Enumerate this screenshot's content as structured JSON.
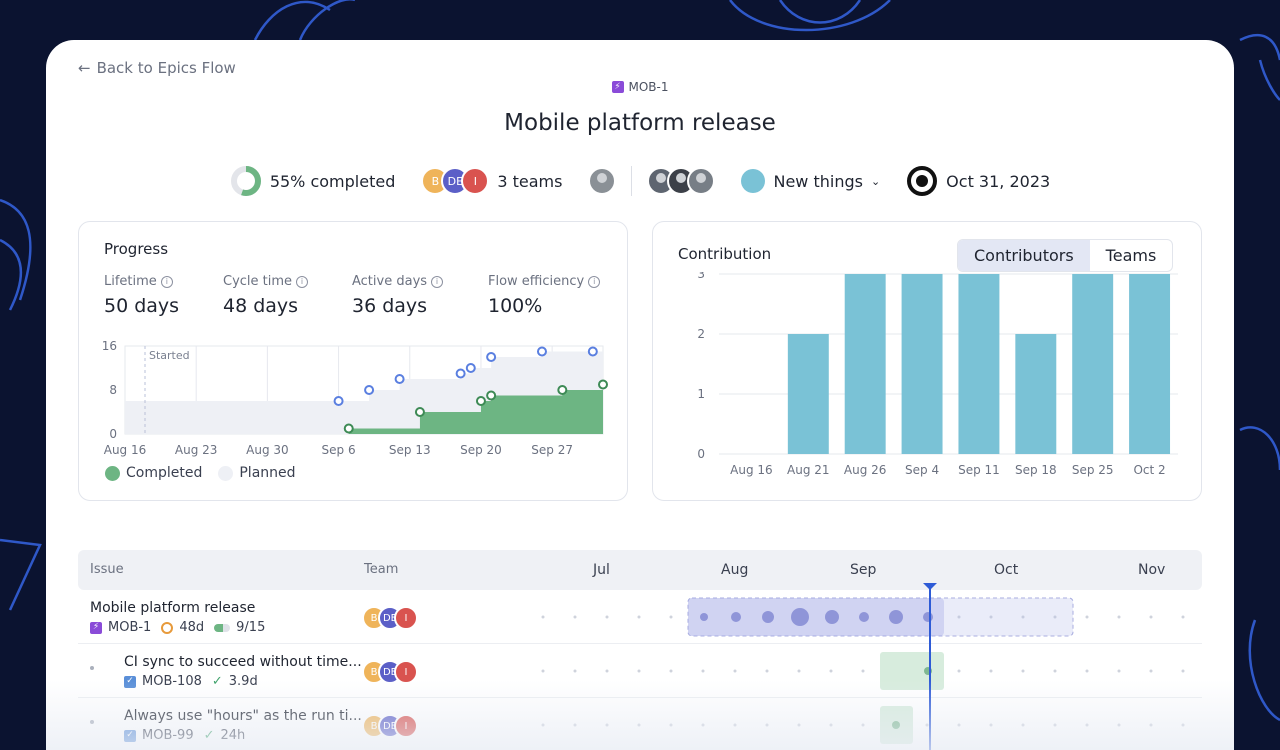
{
  "nav": {
    "back_label": "Back to Epics Flow"
  },
  "epic": {
    "key": "MOB-1",
    "title": "Mobile platform release"
  },
  "summary": {
    "completed_label": "55% completed",
    "completed_fraction": 0.55,
    "teams_label": "3 teams",
    "team_initials": [
      "B",
      "DE",
      "I"
    ],
    "tag_label": "New things",
    "due_date": "Oct 31, 2023"
  },
  "progress": {
    "title": "Progress",
    "metrics": [
      {
        "label": "Lifetime",
        "value": "50 days"
      },
      {
        "label": "Cycle time",
        "value": "48 days"
      },
      {
        "label": "Active days",
        "value": "36 days"
      },
      {
        "label": "Flow efficiency",
        "value": "100%"
      }
    ],
    "legend": {
      "completed": "Completed",
      "planned": "Planned"
    },
    "started_label": "Started"
  },
  "contribution": {
    "title": "Contribution",
    "toggle": {
      "contributors": "Contributors",
      "teams": "Teams"
    }
  },
  "chart_data": [
    {
      "type": "area",
      "title": "Progress",
      "x_ticks": [
        "Aug 16",
        "Aug 23",
        "Aug 30",
        "Sep 6",
        "Sep 13",
        "Sep 20",
        "Sep 27"
      ],
      "y_ticks": [
        0,
        8,
        16
      ],
      "ylim": [
        0,
        16
      ],
      "annotation": "Started",
      "series": [
        {
          "name": "Planned",
          "x": [
            "Aug 16",
            "Sep 6",
            "Sep 9",
            "Sep 12",
            "Sep 18",
            "Sep 19",
            "Sep 21",
            "Sep 26",
            "Oct 1"
          ],
          "values": [
            6,
            6,
            8,
            10,
            11,
            12,
            14,
            15,
            15
          ]
        },
        {
          "name": "Completed",
          "x": [
            "Sep 7",
            "Sep 14",
            "Sep 20",
            "Sep 21",
            "Sep 28",
            "Oct 2"
          ],
          "values": [
            1,
            4,
            6,
            7,
            8,
            9
          ]
        }
      ]
    },
    {
      "type": "bar",
      "title": "Contribution",
      "categories": [
        "Aug 16",
        "Aug 21",
        "Aug 26",
        "Sep 4",
        "Sep 11",
        "Sep 18",
        "Sep 25",
        "Oct 2"
      ],
      "values": [
        0,
        2,
        3,
        3,
        3,
        2,
        3,
        3
      ],
      "ylim": [
        0,
        3
      ],
      "y_ticks": [
        0,
        1,
        2,
        3
      ],
      "color": "#7ac2d6"
    }
  ],
  "issues": {
    "headers": {
      "issue": "Issue",
      "team": "Team"
    },
    "months": [
      "Jul",
      "Aug",
      "Sep",
      "Oct",
      "Nov"
    ],
    "rows": [
      {
        "title": "Mobile platform release",
        "key": "MOB-1",
        "duration": "48d",
        "count": "9/15"
      },
      {
        "title": "CI sync to succeed without time...",
        "key": "MOB-108",
        "duration": "3.9d"
      },
      {
        "title": "Always use \"hours\" as the run ti...",
        "key": "MOB-99",
        "duration": "24h"
      }
    ]
  },
  "colors": {
    "accent_purple": "#8a4bd8",
    "completed_green": "#6db583",
    "bar_teal": "#7ac2d6",
    "timeline_marker": "#2e5bd6"
  }
}
